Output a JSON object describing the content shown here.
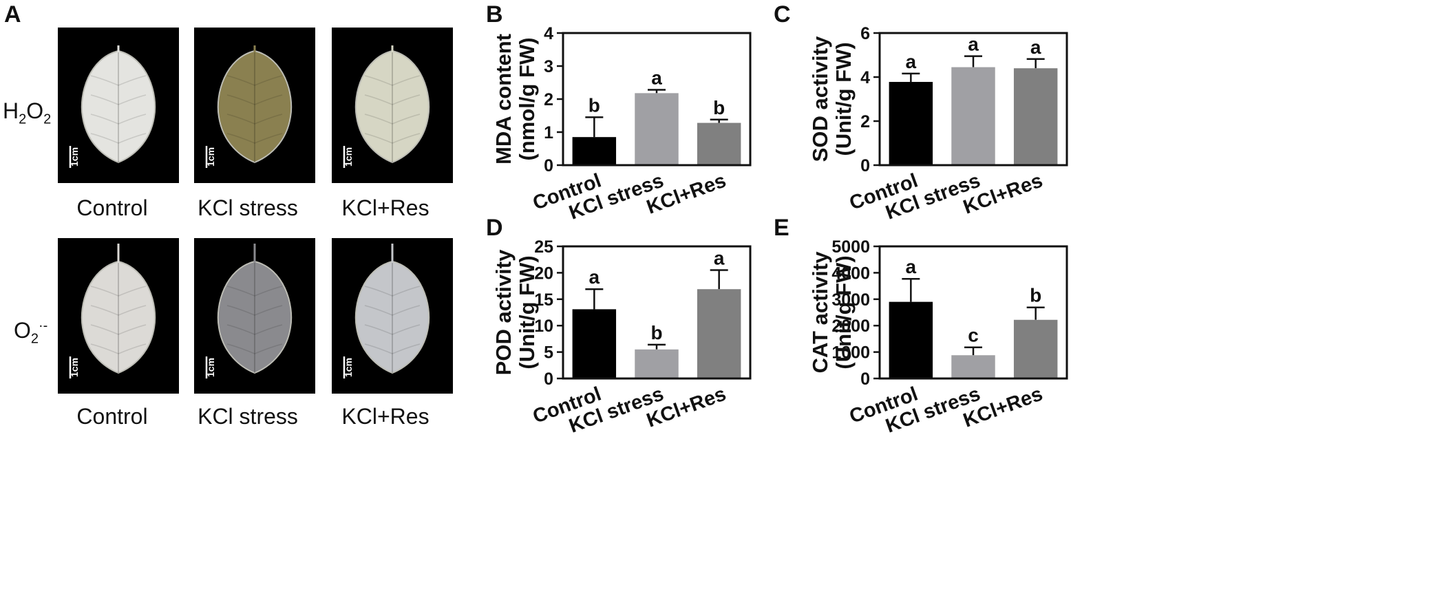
{
  "panel_a": {
    "letter": "A",
    "row_labels": {
      "h2o2": {
        "main": "H",
        "sub1": "2",
        "mid": "O",
        "sub2": "2"
      },
      "o2": {
        "main": "O",
        "sub": "2",
        "sup": "·-"
      }
    },
    "captions_row1": [
      "Control",
      "KCl stress",
      "KCl+Res"
    ],
    "captions_row2": [
      "Control",
      "KCl stress",
      "KCl+Res"
    ],
    "scale_label": "1cm",
    "leaf_colors": {
      "row1": [
        "#e4e4e0",
        "#8a8050",
        "#d6d6c4"
      ],
      "row2": [
        "#dcdad6",
        "#8a8a8e",
        "#c4c6ca"
      ]
    }
  },
  "chart_data": [
    {
      "panel": "B",
      "type": "bar",
      "categories": [
        "Control",
        "KCl stress",
        "KCl+Res"
      ],
      "values": [
        0.85,
        2.18,
        1.28
      ],
      "errors": [
        0.6,
        0.1,
        0.1
      ],
      "significance": [
        "b",
        "a",
        "b"
      ],
      "colors": [
        "#000000",
        "#a0a0a4",
        "#808080"
      ],
      "ylabel_line1": "MDA content",
      "ylabel_line2": "(nmol/g FW)",
      "ylim": [
        0,
        4
      ],
      "yticks": [
        0,
        1,
        2,
        3,
        4
      ]
    },
    {
      "panel": "C",
      "type": "bar",
      "categories": [
        "Control",
        "KCl stress",
        "KCl+Res"
      ],
      "values": [
        3.78,
        4.45,
        4.4
      ],
      "errors": [
        0.38,
        0.5,
        0.42
      ],
      "significance": [
        "a",
        "a",
        "a"
      ],
      "colors": [
        "#000000",
        "#a0a0a4",
        "#808080"
      ],
      "ylabel_line1": "SOD activity",
      "ylabel_line2": "(Unit/g FW)",
      "ylim": [
        0,
        6
      ],
      "yticks": [
        0,
        2,
        4,
        6
      ]
    },
    {
      "panel": "D",
      "type": "bar",
      "categories": [
        "Control",
        "KCl stress",
        "KCl+Res"
      ],
      "values": [
        13.1,
        5.5,
        16.9
      ],
      "errors": [
        3.8,
        0.9,
        3.6
      ],
      "significance": [
        "a",
        "b",
        "a"
      ],
      "colors": [
        "#000000",
        "#a0a0a4",
        "#808080"
      ],
      "ylabel_line1": "POD activity",
      "ylabel_line2": "(Unit/g FW)",
      "ylim": [
        0,
        25
      ],
      "yticks": [
        0,
        5,
        10,
        15,
        20,
        25
      ]
    },
    {
      "panel": "E",
      "type": "bar",
      "categories": [
        "Control",
        "KCl stress",
        "KCl+Res"
      ],
      "values": [
        2900,
        880,
        2220
      ],
      "errors": [
        870,
        300,
        470
      ],
      "significance": [
        "a",
        "c",
        "b"
      ],
      "colors": [
        "#000000",
        "#a0a0a4",
        "#808080"
      ],
      "ylabel_line1": "CAT activity",
      "ylabel_line2": "(Unit/g FW)",
      "ylim": [
        0,
        5000
      ],
      "yticks": [
        0,
        1000,
        2000,
        3000,
        4000,
        5000
      ]
    }
  ]
}
